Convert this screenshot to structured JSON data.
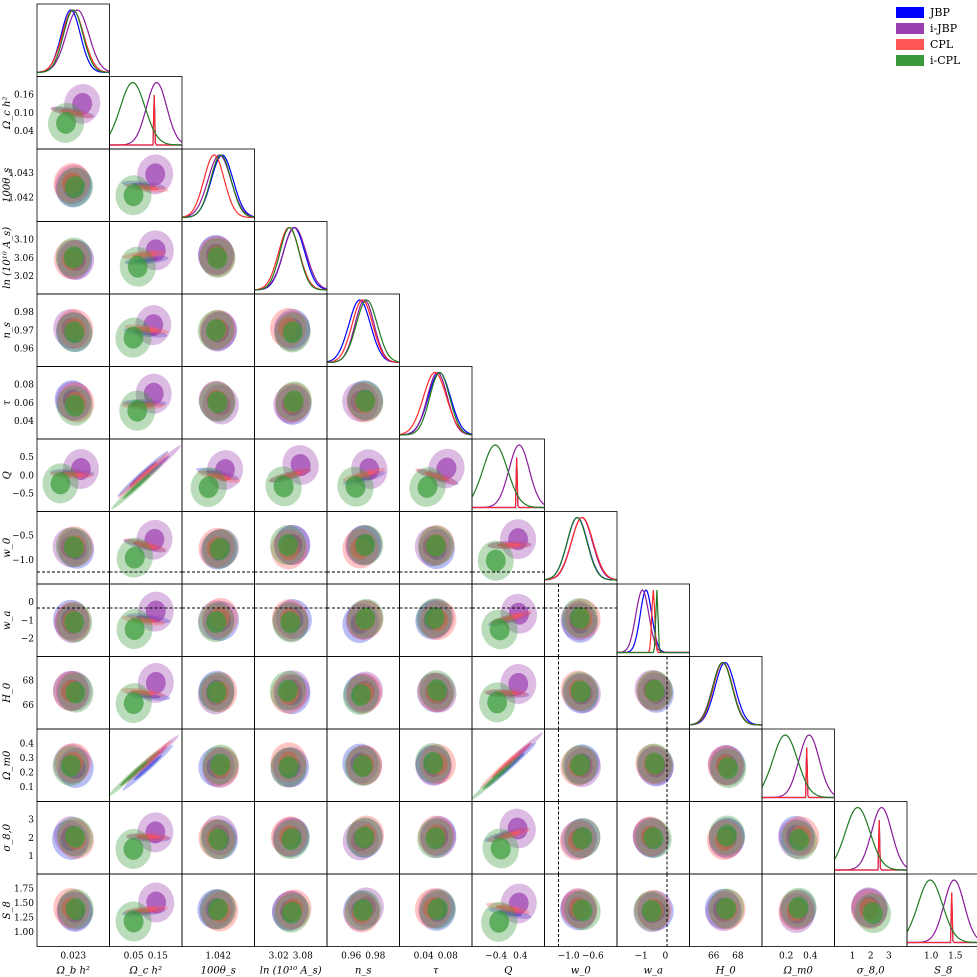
{
  "chart_data": {
    "type": "scatter",
    "title": "",
    "subtitle": "",
    "legend_placement": "top-right",
    "series": [
      {
        "name": "JBP",
        "color": "#0000ff",
        "fill": "#3344dd"
      },
      {
        "name": "i-JBP",
        "color": "#8b1a9a",
        "fill": "#9b3fb0"
      },
      {
        "name": "CPL",
        "color": "#ff2a2a",
        "fill": "#ff5555"
      },
      {
        "name": "i-CPL",
        "color": "#1f7a1f",
        "fill": "#3a9a3a"
      }
    ],
    "parameters": [
      {
        "label": "Ω_b h²",
        "ticks": [
          "0.023"
        ]
      },
      {
        "label": "Ω_c h²",
        "ticks": [
          "0.05",
          "0.15"
        ]
      },
      {
        "label": "100θ_s",
        "ticks": [
          "1.042"
        ]
      },
      {
        "label": "ln (10¹⁰ A_s)",
        "ticks": [
          "3.02",
          "3.08"
        ]
      },
      {
        "label": "n_s",
        "ticks": [
          "0.96",
          "0.98"
        ]
      },
      {
        "label": "τ",
        "ticks": [
          "0.04",
          "0.08"
        ]
      },
      {
        "label": "Q",
        "ticks": [
          "−0.4",
          "0.4"
        ]
      },
      {
        "label": "w_0",
        "ticks": [
          "−1.0",
          "−0.6"
        ]
      },
      {
        "label": "w_a",
        "ticks": [
          "−1",
          "0"
        ]
      },
      {
        "label": "H_0",
        "ticks": [
          "66",
          "68"
        ]
      },
      {
        "label": "Ω_m0",
        "ticks": [
          "0.2",
          "0.4"
        ]
      },
      {
        "label": "σ_8,0",
        "ticks": [
          "1",
          "2",
          "3"
        ]
      },
      {
        "label": "S_8",
        "ticks": [
          "1.0",
          "1.5"
        ]
      }
    ],
    "y_axis_labels": [
      {
        "label": "Ω_c h²",
        "ticks": [
          "0.16",
          "0.10",
          "0.04"
        ]
      },
      {
        "label": "100θ_s",
        "ticks": [
          "1.043",
          "1.042"
        ]
      },
      {
        "label": "ln (10¹⁰ A_s)",
        "ticks": [
          "3.10",
          "3.06",
          "3.02"
        ]
      },
      {
        "label": "n_s",
        "ticks": [
          "0.98",
          "0.97",
          "0.96"
        ]
      },
      {
        "label": "τ",
        "ticks": [
          "0.08",
          "0.06",
          "0.04"
        ]
      },
      {
        "label": "Q",
        "ticks": [
          "0.5",
          "0.0",
          "−0.5"
        ]
      },
      {
        "label": "w_0",
        "ticks": [
          "−0.5",
          "−1.0"
        ]
      },
      {
        "label": "w_a",
        "ticks": [
          "0",
          "−1",
          "−2"
        ]
      },
      {
        "label": "H_0",
        "ticks": [
          "68",
          "66"
        ]
      },
      {
        "label": "Ω_m0",
        "ticks": [
          "0.4",
          "0.3",
          "0.2",
          "0.1"
        ]
      },
      {
        "label": "σ_8,0",
        "ticks": [
          "3",
          "2",
          "1"
        ]
      },
      {
        "label": "S_8",
        "ticks": [
          "1.75",
          "1.50",
          "1.25",
          "1.00"
        ]
      }
    ],
    "reference_lines": {
      "w_0": -1.0,
      "w_a": 0.0
    }
  }
}
